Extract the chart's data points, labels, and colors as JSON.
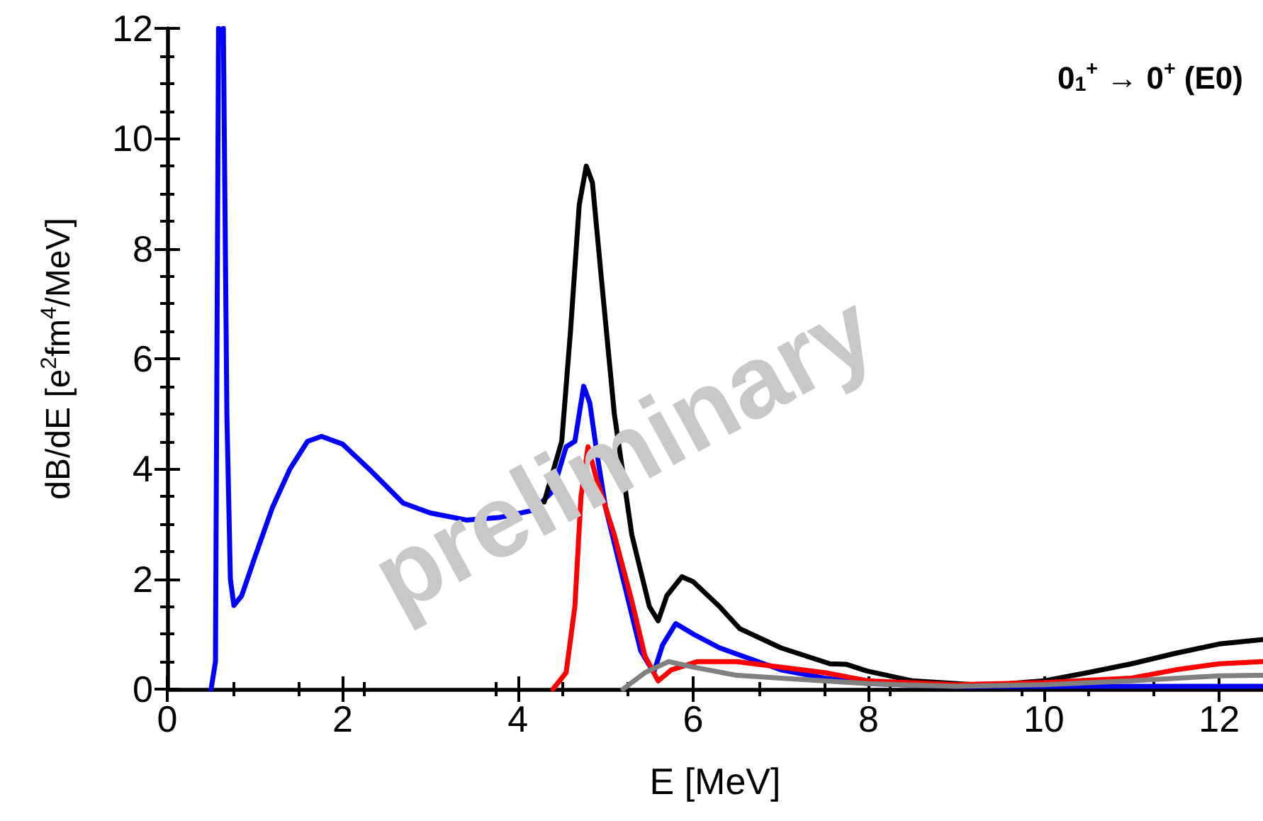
{
  "chart_data": {
    "type": "line",
    "xlabel": "E [MeV]",
    "ylabel": "dB/dE [e$^{2}$fm$^{4}$/MeV]",
    "xlim": [
      0,
      12.5
    ],
    "xticks": [
      0,
      2,
      4,
      6,
      8,
      10,
      12
    ],
    "ylim": [
      0,
      12
    ],
    "yticks": [
      0,
      2,
      4,
      6,
      8,
      10,
      12
    ],
    "annotations": [
      "0$_{1}$$^{+}$ → 0$^{+}$ (E0)",
      "preliminary"
    ],
    "series": [
      {
        "color": "#0000ff",
        "x": [
          0.5,
          0.55,
          0.585,
          0.6,
          0.64,
          0.68,
          0.72,
          0.76,
          0.85,
          1.0,
          1.2,
          1.4,
          1.6,
          1.76,
          2.0,
          2.3,
          2.69,
          3.0,
          3.42,
          3.8,
          4.18,
          4.4,
          4.55,
          4.65,
          4.75,
          4.82,
          4.9,
          5.0,
          5.2,
          5.4,
          5.55,
          5.65,
          5.8,
          6.0,
          6.3,
          6.65,
          7.0,
          7.5,
          8.0,
          9.0,
          10,
          11,
          12,
          12.5
        ],
        "values": [
          0,
          0.5,
          12,
          null,
          12,
          5,
          2,
          1.52,
          1.7,
          2.4,
          3.3,
          4.0,
          4.5,
          4.59,
          4.45,
          4.0,
          3.38,
          3.2,
          3.07,
          3.12,
          3.25,
          3.6,
          4.4,
          4.5,
          5.5,
          5.2,
          4.3,
          3.3,
          2.0,
          0.7,
          0.3,
          0.8,
          1.19,
          1.0,
          0.75,
          0.55,
          0.35,
          0.2,
          0.1,
          0.05,
          0.05,
          0.05,
          0.05,
          0.05
        ]
      },
      {
        "color": "#000000",
        "x": [
          4.3,
          4.5,
          4.6,
          4.7,
          4.78,
          4.85,
          4.95,
          5.1,
          5.3,
          5.5,
          5.6,
          5.7,
          5.87,
          6.0,
          6.3,
          6.53,
          7.0,
          7.56,
          7.75,
          7.98,
          8.5,
          9.2,
          9.6,
          10,
          10.5,
          11,
          11.5,
          12,
          12.5
        ],
        "values": [
          3.4,
          4.5,
          6.5,
          8.8,
          9.5,
          9.2,
          7.5,
          5.0,
          2.8,
          1.5,
          1.24,
          1.7,
          2.04,
          1.95,
          1.5,
          1.1,
          0.75,
          0.46,
          0.45,
          0.33,
          0.15,
          0.08,
          0.1,
          0.15,
          0.3,
          0.46,
          0.65,
          0.82,
          0.9
        ]
      },
      {
        "color": "#ff0000",
        "x": [
          4.4,
          4.55,
          4.65,
          4.72,
          4.8,
          4.9,
          5.1,
          5.3,
          5.45,
          5.6,
          5.75,
          6.05,
          6.5,
          7.0,
          7.5,
          8.0,
          9.0,
          10,
          11,
          11.5,
          12,
          12.5
        ],
        "values": [
          0,
          0.3,
          1.5,
          3.5,
          4.4,
          3.8,
          2.8,
          1.6,
          0.6,
          0.15,
          0.35,
          0.5,
          0.5,
          0.4,
          0.3,
          0.15,
          0.08,
          0.12,
          0.2,
          0.35,
          0.46,
          0.5
        ]
      },
      {
        "color": "#808080",
        "x": [
          5.2,
          5.45,
          5.72,
          6.0,
          6.5,
          7.0,
          8,
          9,
          10,
          11,
          12,
          12.5
        ],
        "values": [
          0,
          0.3,
          0.5,
          0.4,
          0.25,
          0.2,
          0.1,
          0.05,
          0.08,
          0.15,
          0.24,
          0.25
        ]
      }
    ]
  }
}
